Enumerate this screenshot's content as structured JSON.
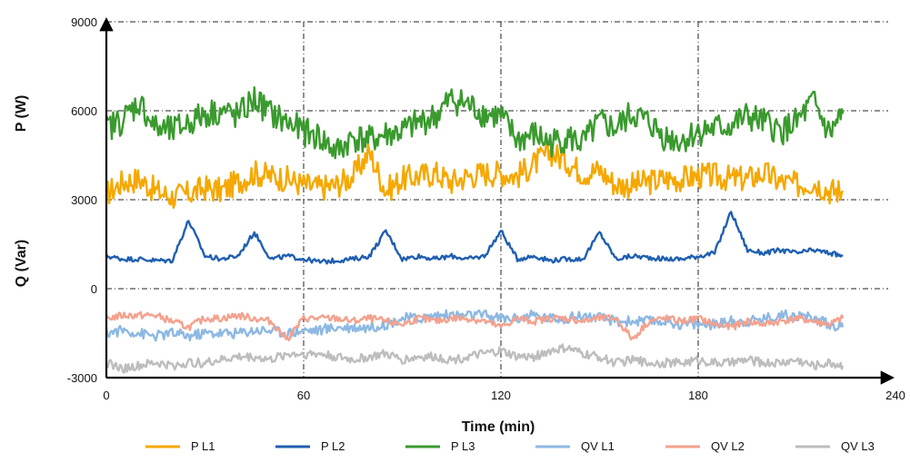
{
  "chart_data": {
    "type": "line",
    "xlabel": "Time (min)",
    "ylabel_top": "P (W)",
    "ylabel_bottom": "Q (Var)",
    "xlim": [
      0,
      240
    ],
    "ylim": [
      -3000,
      9000
    ],
    "x_ticks": [
      "0",
      "60",
      "120",
      "180",
      "240"
    ],
    "y_ticks": [
      "-3000",
      "0",
      "3000",
      "6000",
      "9000"
    ],
    "grid": true,
    "legend_position": "bottom",
    "x": [
      0,
      5,
      10,
      15,
      20,
      25,
      30,
      35,
      40,
      45,
      50,
      55,
      60,
      65,
      70,
      75,
      80,
      85,
      90,
      95,
      100,
      105,
      110,
      115,
      120,
      125,
      130,
      135,
      140,
      145,
      150,
      155,
      160,
      165,
      170,
      175,
      180,
      185,
      190,
      195,
      200,
      205,
      210,
      215,
      220,
      224
    ],
    "series": [
      {
        "name": "P L1",
        "color": "#F5A800",
        "values": [
          3200,
          3600,
          3700,
          3300,
          3100,
          3200,
          3400,
          3300,
          3600,
          3900,
          3800,
          3700,
          3500,
          3400,
          3500,
          3800,
          4600,
          3300,
          3700,
          3800,
          3900,
          3600,
          3800,
          3900,
          3900,
          3800,
          4200,
          4600,
          4300,
          3900,
          4000,
          3500,
          3500,
          3600,
          3700,
          3700,
          3800,
          3800,
          3700,
          3700,
          3900,
          3600,
          3500,
          3600,
          3300,
          3300
        ]
      },
      {
        "name": "P L2",
        "color": "#1F5FB0",
        "values": [
          1100,
          1000,
          1000,
          950,
          950,
          2300,
          1100,
          1000,
          1100,
          1900,
          1000,
          1100,
          1000,
          900,
          950,
          1000,
          1100,
          1950,
          1000,
          1100,
          1000,
          1100,
          1000,
          1100,
          1950,
          1000,
          1100,
          950,
          1000,
          1000,
          1900,
          1000,
          1100,
          1050,
          1000,
          1000,
          1100,
          1200,
          2600,
          1300,
          1200,
          1300,
          1200,
          1300,
          1200,
          1100
        ]
      },
      {
        "name": "P L3",
        "color": "#3A9A2E",
        "values": [
          5400,
          5700,
          6300,
          5400,
          5300,
          5600,
          5900,
          6000,
          5800,
          6400,
          5900,
          5600,
          5300,
          5100,
          4600,
          5100,
          5000,
          5200,
          5300,
          5600,
          5800,
          6400,
          6200,
          5900,
          5800,
          5000,
          5200,
          4900,
          5100,
          4900,
          5600,
          5400,
          5900,
          5600,
          5100,
          5000,
          5300,
          5400,
          5500,
          5800,
          5600,
          5300,
          5600,
          6300,
          5200,
          5900
        ]
      },
      {
        "name": "QV L1",
        "color": "#8DB8E2",
        "values": [
          -1500,
          -1400,
          -1500,
          -1600,
          -1500,
          -1600,
          -1500,
          -1500,
          -1500,
          -1400,
          -1400,
          -1500,
          -1400,
          -1400,
          -1300,
          -1300,
          -1300,
          -1200,
          -1000,
          -1000,
          -900,
          -900,
          -900,
          -900,
          -1000,
          -1000,
          -900,
          -1000,
          -1000,
          -900,
          -1000,
          -1100,
          -1100,
          -1100,
          -1100,
          -1200,
          -1200,
          -1200,
          -1100,
          -1100,
          -1000,
          -900,
          -900,
          -1000,
          -1200,
          -1300
        ]
      },
      {
        "name": "QV L2",
        "color": "#F4A18E",
        "values": [
          -1000,
          -900,
          -900,
          -900,
          -1100,
          -1300,
          -1000,
          -1000,
          -900,
          -1000,
          -1100,
          -1700,
          -1000,
          -1000,
          -1000,
          -1100,
          -1000,
          -1100,
          -1200,
          -1000,
          -1100,
          -1000,
          -1000,
          -1100,
          -1300,
          -1000,
          -1100,
          -1000,
          -1000,
          -1100,
          -1000,
          -1000,
          -1700,
          -1100,
          -1000,
          -1100,
          -1000,
          -1200,
          -1300,
          -1100,
          -1200,
          -1100,
          -1000,
          -1100,
          -1200,
          -1000
        ]
      },
      {
        "name": "QV L3",
        "color": "#BDBDBD",
        "values": [
          -2500,
          -2700,
          -2600,
          -2500,
          -2600,
          -2500,
          -2500,
          -2400,
          -2300,
          -2300,
          -2400,
          -2200,
          -2200,
          -2200,
          -2300,
          -2400,
          -2300,
          -2200,
          -2400,
          -2300,
          -2300,
          -2400,
          -2300,
          -2200,
          -2100,
          -2300,
          -2300,
          -2100,
          -2000,
          -2200,
          -2300,
          -2500,
          -2400,
          -2500,
          -2500,
          -2500,
          -2400,
          -2500,
          -2500,
          -2400,
          -2500,
          -2500,
          -2400,
          -2600,
          -2500,
          -2600
        ]
      }
    ]
  }
}
